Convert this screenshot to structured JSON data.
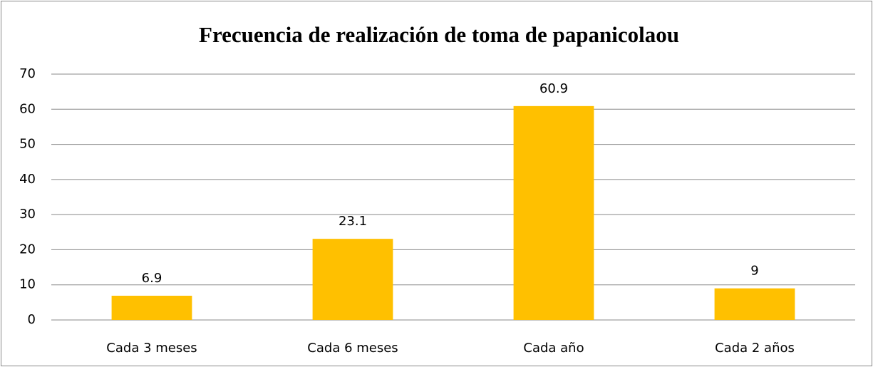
{
  "chart_data": {
    "type": "bar",
    "title": "Frecuencia de realización de toma de papanicolaou",
    "categories": [
      "Cada 3 meses",
      "Cada 6 meses",
      "Cada año",
      "Cada 2 años"
    ],
    "values": [
      6.9,
      23.1,
      60.9,
      9
    ],
    "color": "#ffc000",
    "ylim": [
      0,
      70
    ],
    "yticks": [
      0,
      10,
      20,
      30,
      40,
      50,
      60,
      70
    ],
    "grid": true
  }
}
